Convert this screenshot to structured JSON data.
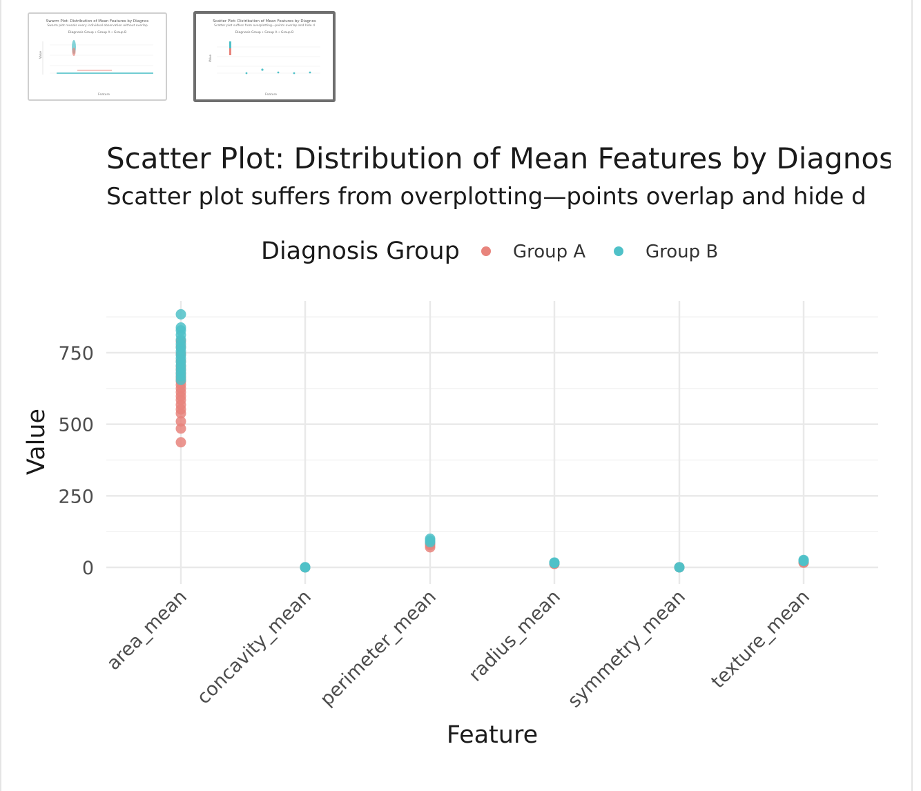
{
  "thumbnails": [
    {
      "title": "Swarm Plot: Distribution of Mean Features by Diagnos",
      "subtitle": "Swarm plot reveals every individual observation without overlap",
      "legend": "Diagnosis Group  •  Group A  •  Group B",
      "selected": false
    },
    {
      "title": "Scatter Plot: Distribution of Mean Features by Diagnos",
      "subtitle": "Scatter plot suffers from overplotting—points overlap and hide d",
      "legend": "Diagnosis Group  •  Group A  •  Group B",
      "selected": true
    }
  ],
  "colors": {
    "group_a": "#E8847C",
    "group_b": "#4FC1C8",
    "grid": "#ebebeb"
  },
  "chart_data": {
    "type": "scatter",
    "title": "Scatter Plot: Distribution of Mean Features by Diagnos",
    "subtitle": "Scatter plot suffers from overplotting—points overlap and hide d",
    "xlabel": "Feature",
    "ylabel": "Value",
    "legend_title": "Diagnosis Group",
    "legend_position": "top",
    "grid": true,
    "categories": [
      "area_mean",
      "concavity_mean",
      "perimeter_mean",
      "radius_mean",
      "symmetry_mean",
      "texture_mean"
    ],
    "ylim": [
      -45,
      925
    ],
    "yticks": [
      0,
      250,
      500,
      750
    ],
    "series": [
      {
        "name": "Group A",
        "color": "#E8847C",
        "points": [
          {
            "x": "area_mean",
            "y": 437
          },
          {
            "x": "area_mean",
            "y": 485
          },
          {
            "x": "area_mean",
            "y": 510
          },
          {
            "x": "area_mean",
            "y": 538
          },
          {
            "x": "area_mean",
            "y": 552
          },
          {
            "x": "area_mean",
            "y": 568
          },
          {
            "x": "area_mean",
            "y": 585
          },
          {
            "x": "area_mean",
            "y": 598
          },
          {
            "x": "area_mean",
            "y": 612
          },
          {
            "x": "area_mean",
            "y": 625
          },
          {
            "x": "area_mean",
            "y": 638
          },
          {
            "x": "area_mean",
            "y": 650
          },
          {
            "x": "area_mean",
            "y": 662
          },
          {
            "x": "area_mean",
            "y": 676
          },
          {
            "x": "area_mean",
            "y": 690
          },
          {
            "x": "area_mean",
            "y": 702
          },
          {
            "x": "area_mean",
            "y": 720
          },
          {
            "x": "area_mean",
            "y": 745
          },
          {
            "x": "area_mean",
            "y": 770
          },
          {
            "x": "area_mean",
            "y": 790
          },
          {
            "x": "concavity_mean",
            "y": 0.06
          },
          {
            "x": "concavity_mean",
            "y": 0.09
          },
          {
            "x": "concavity_mean",
            "y": 0.12
          },
          {
            "x": "perimeter_mean",
            "y": 70
          },
          {
            "x": "perimeter_mean",
            "y": 78
          },
          {
            "x": "perimeter_mean",
            "y": 84
          },
          {
            "x": "radius_mean",
            "y": 12
          },
          {
            "x": "radius_mean",
            "y": 13
          },
          {
            "x": "radius_mean",
            "y": 14
          },
          {
            "x": "symmetry_mean",
            "y": 0.16
          },
          {
            "x": "symmetry_mean",
            "y": 0.18
          },
          {
            "x": "texture_mean",
            "y": 16
          },
          {
            "x": "texture_mean",
            "y": 18
          }
        ]
      },
      {
        "name": "Group B",
        "color": "#4FC1C8",
        "points": [
          {
            "x": "area_mean",
            "y": 655
          },
          {
            "x": "area_mean",
            "y": 668
          },
          {
            "x": "area_mean",
            "y": 680
          },
          {
            "x": "area_mean",
            "y": 692
          },
          {
            "x": "area_mean",
            "y": 705
          },
          {
            "x": "area_mean",
            "y": 718
          },
          {
            "x": "area_mean",
            "y": 730
          },
          {
            "x": "area_mean",
            "y": 742
          },
          {
            "x": "area_mean",
            "y": 755
          },
          {
            "x": "area_mean",
            "y": 768
          },
          {
            "x": "area_mean",
            "y": 780
          },
          {
            "x": "area_mean",
            "y": 795
          },
          {
            "x": "area_mean",
            "y": 812
          },
          {
            "x": "area_mean",
            "y": 828
          },
          {
            "x": "area_mean",
            "y": 838
          },
          {
            "x": "area_mean",
            "y": 884
          },
          {
            "x": "concavity_mean",
            "y": 0.2
          },
          {
            "x": "concavity_mean",
            "y": 0.25
          },
          {
            "x": "concavity_mean",
            "y": 0.3
          },
          {
            "x": "perimeter_mean",
            "y": 88
          },
          {
            "x": "perimeter_mean",
            "y": 94
          },
          {
            "x": "perimeter_mean",
            "y": 100
          },
          {
            "x": "radius_mean",
            "y": 15
          },
          {
            "x": "radius_mean",
            "y": 16
          },
          {
            "x": "radius_mean",
            "y": 17
          },
          {
            "x": "symmetry_mean",
            "y": 0.2
          },
          {
            "x": "symmetry_mean",
            "y": 0.22
          },
          {
            "x": "texture_mean",
            "y": 22
          },
          {
            "x": "texture_mean",
            "y": 24
          },
          {
            "x": "texture_mean",
            "y": 26
          }
        ]
      }
    ]
  }
}
